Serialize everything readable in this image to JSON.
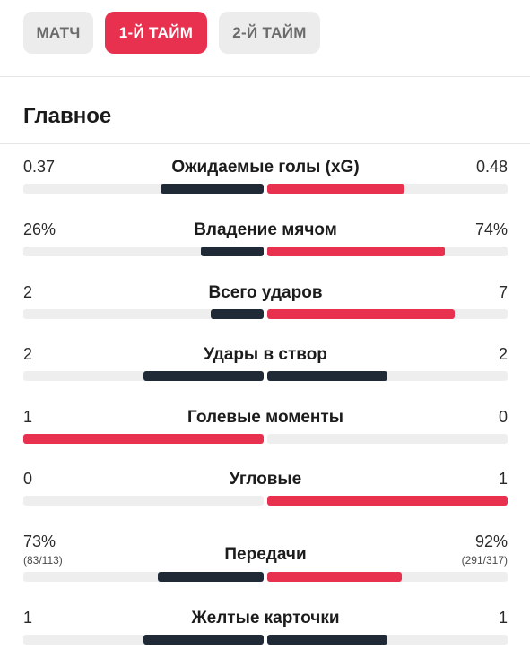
{
  "tabs": [
    {
      "label": "МАТЧ",
      "active": false
    },
    {
      "label": "1-Й ТАЙМ",
      "active": true
    },
    {
      "label": "2-Й ТАЙМ",
      "active": false
    }
  ],
  "section_title": "Главное",
  "colors": {
    "home": "#1f2a36",
    "away": "#e8304f",
    "track": "#eeeeee",
    "accent": "#e8304f"
  },
  "stats": [
    {
      "name": "Ожидаемые голы (xG)",
      "left": "0.37",
      "right": "0.48",
      "left_share": 0.43,
      "right_share": 0.57,
      "left_color": "home",
      "right_color": "away"
    },
    {
      "name": "Владение мячом",
      "left": "26%",
      "right": "74%",
      "left_share": 0.26,
      "right_share": 0.74,
      "left_color": "home",
      "right_color": "away"
    },
    {
      "name": "Всего ударов",
      "left": "2",
      "right": "7",
      "left_share": 0.22,
      "right_share": 0.78,
      "left_color": "home",
      "right_color": "away"
    },
    {
      "name": "Удары в створ",
      "left": "2",
      "right": "2",
      "left_share": 0.5,
      "right_share": 0.5,
      "left_color": "home",
      "right_color": "home"
    },
    {
      "name": "Голевые моменты",
      "left": "1",
      "right": "0",
      "left_share": 1.0,
      "right_share": 0.0,
      "left_color": "away",
      "right_color": "away"
    },
    {
      "name": "Угловые",
      "left": "0",
      "right": "1",
      "left_share": 0.0,
      "right_share": 1.0,
      "left_color": "away",
      "right_color": "away"
    },
    {
      "name": "Передачи",
      "left": "73%",
      "right": "92%",
      "left_sub": "(83/113)",
      "right_sub": "(291/317)",
      "left_share": 0.44,
      "right_share": 0.56,
      "left_color": "home",
      "right_color": "away"
    },
    {
      "name": "Желтые карточки",
      "left": "1",
      "right": "1",
      "left_share": 0.5,
      "right_share": 0.5,
      "left_color": "home",
      "right_color": "home"
    }
  ]
}
